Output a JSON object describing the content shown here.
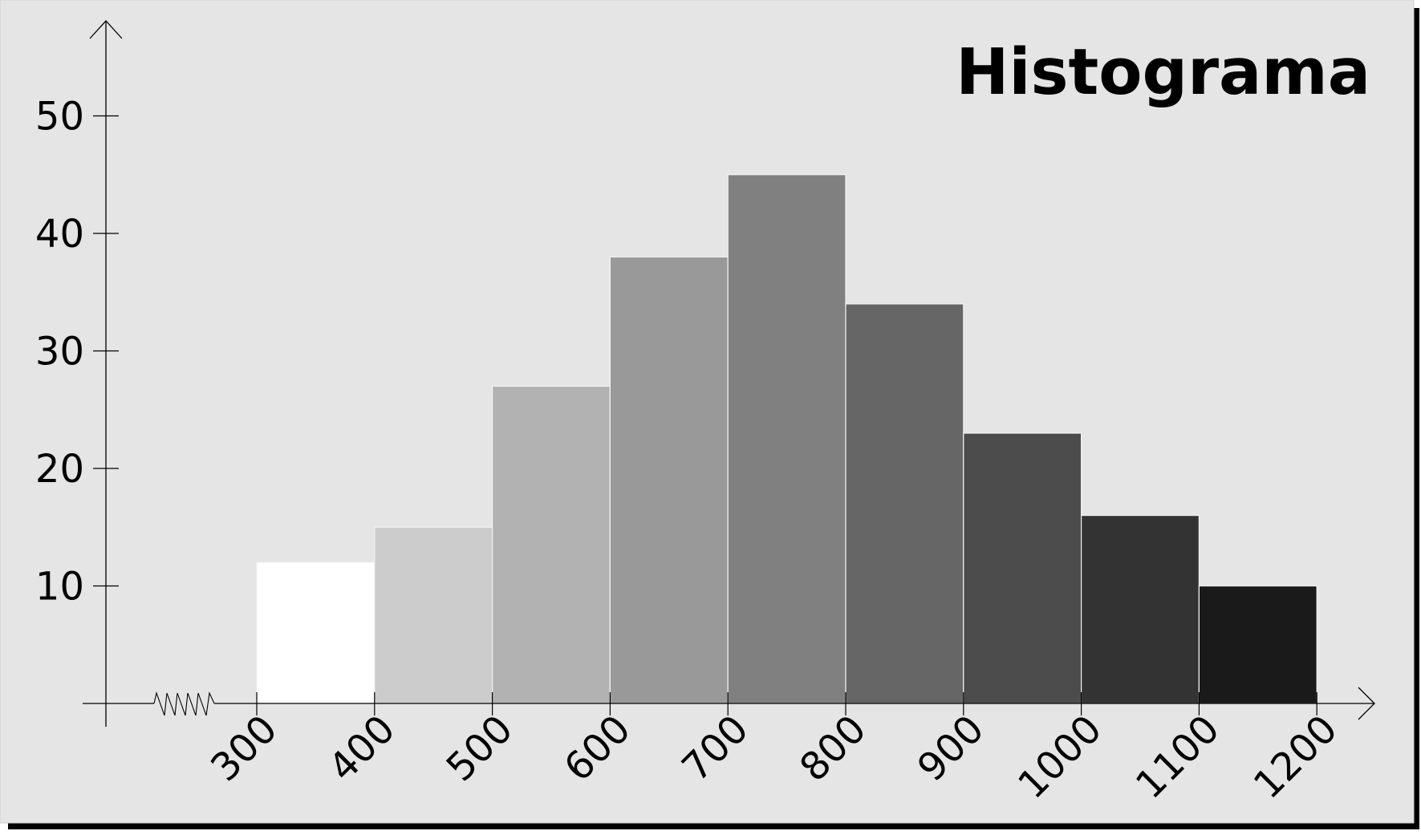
{
  "chart_data": {
    "type": "bar",
    "title": "Histograma",
    "xlabel": "",
    "ylabel": "",
    "bins": [
      {
        "start": 300,
        "end": 400,
        "value": 12,
        "color": "#ffffff"
      },
      {
        "start": 400,
        "end": 500,
        "value": 15,
        "color": "#cccccc"
      },
      {
        "start": 500,
        "end": 600,
        "value": 27,
        "color": "#b2b2b2"
      },
      {
        "start": 600,
        "end": 700,
        "value": 38,
        "color": "#999999"
      },
      {
        "start": 700,
        "end": 800,
        "value": 45,
        "color": "#808080"
      },
      {
        "start": 800,
        "end": 900,
        "value": 34,
        "color": "#666666"
      },
      {
        "start": 900,
        "end": 1000,
        "value": 23,
        "color": "#4c4c4c"
      },
      {
        "start": 1000,
        "end": 1100,
        "value": 16,
        "color": "#333333"
      },
      {
        "start": 1100,
        "end": 1200,
        "value": 10,
        "color": "#1a1a1a"
      }
    ],
    "x_ticks": [
      "300",
      "400",
      "500",
      "600",
      "700",
      "800",
      "900",
      "1000",
      "1100",
      "1200"
    ],
    "y_ticks": [
      "10",
      "20",
      "30",
      "40",
      "50"
    ],
    "xlim": [
      300,
      1200
    ],
    "ylim": [
      0,
      50
    ],
    "x_axis_break": true,
    "grid": false,
    "legend": "none",
    "colors": {
      "background": "#e5e5e5",
      "axis": "#000000",
      "bar_edge": "#f2f2f2",
      "shadow": "#000000"
    }
  }
}
